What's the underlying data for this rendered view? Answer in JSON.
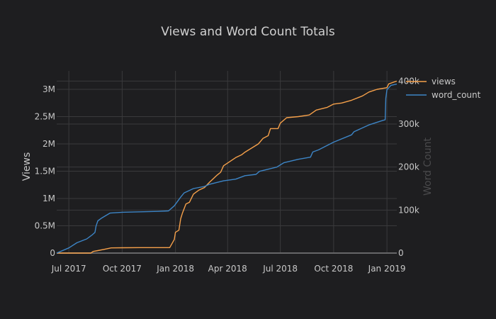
{
  "chart_data": {
    "type": "line",
    "title": "Views and Word Count Totals",
    "xlabel": "",
    "ylabel": "Views",
    "y2label": "Word Count",
    "x_ticks": [
      {
        "date": "2017-07-01",
        "label": "Jul 2017"
      },
      {
        "date": "2017-10-01",
        "label": "Oct 2017"
      },
      {
        "date": "2018-01-01",
        "label": "Jan 2018"
      },
      {
        "date": "2018-04-01",
        "label": "Apr 2018"
      },
      {
        "date": "2018-07-01",
        "label": "Jul 2018"
      },
      {
        "date": "2018-10-01",
        "label": "Oct 2018"
      },
      {
        "date": "2019-01-01",
        "label": "Jan 2019"
      }
    ],
    "xlim": [
      "2017-06-10",
      "2019-01-18"
    ],
    "y_ticks": [
      {
        "value": 0,
        "label": "0"
      },
      {
        "value": 500000,
        "label": "0.5M"
      },
      {
        "value": 1000000,
        "label": "1M"
      },
      {
        "value": 1500000,
        "label": "1.5M"
      },
      {
        "value": 2000000,
        "label": "2M"
      },
      {
        "value": 2500000,
        "label": "2.5M"
      },
      {
        "value": 3000000,
        "label": "3M"
      }
    ],
    "ylim": [
      0,
      3200000
    ],
    "y2_ticks": [
      {
        "value": 0,
        "label": "0"
      },
      {
        "value": 100000,
        "label": "100k"
      },
      {
        "value": 200000,
        "label": "200k"
      },
      {
        "value": 300000,
        "label": "300k"
      },
      {
        "value": 400000,
        "label": "400k"
      }
    ],
    "y2lim": [
      0,
      400000
    ],
    "grid": true,
    "legend_position": "top-right",
    "series": [
      {
        "name": "views",
        "axis": "y",
        "color": "#f5a04a",
        "points": [
          [
            "2017-06-10",
            0
          ],
          [
            "2017-08-08",
            0
          ],
          [
            "2017-08-12",
            30000
          ],
          [
            "2017-08-20",
            45000
          ],
          [
            "2017-09-01",
            70000
          ],
          [
            "2017-09-12",
            95000
          ],
          [
            "2017-10-01",
            97000
          ],
          [
            "2017-11-01",
            100000
          ],
          [
            "2017-12-01",
            100000
          ],
          [
            "2017-12-22",
            100000
          ],
          [
            "2017-12-30",
            250000
          ],
          [
            "2018-01-01",
            380000
          ],
          [
            "2018-01-07",
            420000
          ],
          [
            "2018-01-10",
            630000
          ],
          [
            "2018-01-13",
            730000
          ],
          [
            "2018-01-19",
            900000
          ],
          [
            "2018-01-25",
            930000
          ],
          [
            "2018-02-01",
            1080000
          ],
          [
            "2018-02-10",
            1150000
          ],
          [
            "2018-02-20",
            1200000
          ],
          [
            "2018-03-01",
            1300000
          ],
          [
            "2018-03-14",
            1430000
          ],
          [
            "2018-03-20",
            1480000
          ],
          [
            "2018-03-25",
            1600000
          ],
          [
            "2018-04-15",
            1750000
          ],
          [
            "2018-04-25",
            1800000
          ],
          [
            "2018-05-01",
            1850000
          ],
          [
            "2018-05-24",
            2000000
          ],
          [
            "2018-06-01",
            2100000
          ],
          [
            "2018-06-10",
            2150000
          ],
          [
            "2018-06-14",
            2280000
          ],
          [
            "2018-06-27",
            2280000
          ],
          [
            "2018-07-01",
            2380000
          ],
          [
            "2018-07-12",
            2480000
          ],
          [
            "2018-08-01",
            2500000
          ],
          [
            "2018-08-20",
            2530000
          ],
          [
            "2018-09-01",
            2620000
          ],
          [
            "2018-09-20",
            2670000
          ],
          [
            "2018-10-01",
            2730000
          ],
          [
            "2018-10-15",
            2750000
          ],
          [
            "2018-11-01",
            2800000
          ],
          [
            "2018-11-20",
            2880000
          ],
          [
            "2018-12-01",
            2950000
          ],
          [
            "2018-12-15",
            3000000
          ],
          [
            "2019-01-01",
            3030000
          ],
          [
            "2019-01-04",
            3100000
          ],
          [
            "2019-01-18",
            3150000
          ]
        ]
      },
      {
        "name": "word_count",
        "axis": "y2",
        "color": "#3d85c6",
        "points": [
          [
            "2017-06-10",
            0
          ],
          [
            "2017-07-01",
            12000
          ],
          [
            "2017-07-15",
            24000
          ],
          [
            "2017-08-01",
            33000
          ],
          [
            "2017-08-10",
            42000
          ],
          [
            "2017-08-15",
            48000
          ],
          [
            "2017-08-17",
            63000
          ],
          [
            "2017-08-20",
            75000
          ],
          [
            "2017-08-26",
            81000
          ],
          [
            "2017-09-10",
            93000
          ],
          [
            "2017-10-01",
            95000
          ],
          [
            "2017-11-01",
            96000
          ],
          [
            "2017-12-01",
            97000
          ],
          [
            "2017-12-20",
            98000
          ],
          [
            "2017-12-30",
            110000
          ],
          [
            "2018-01-10",
            130000
          ],
          [
            "2018-01-16",
            140000
          ],
          [
            "2018-02-01",
            150000
          ],
          [
            "2018-02-20",
            155000
          ],
          [
            "2018-03-01",
            160000
          ],
          [
            "2018-03-25",
            168000
          ],
          [
            "2018-04-15",
            172000
          ],
          [
            "2018-05-01",
            180000
          ],
          [
            "2018-05-20",
            183000
          ],
          [
            "2018-05-26",
            190000
          ],
          [
            "2018-06-10",
            195000
          ],
          [
            "2018-06-25",
            200000
          ],
          [
            "2018-07-07",
            210000
          ],
          [
            "2018-08-01",
            218000
          ],
          [
            "2018-08-22",
            223000
          ],
          [
            "2018-08-26",
            235000
          ],
          [
            "2018-09-05",
            240000
          ],
          [
            "2018-10-01",
            258000
          ],
          [
            "2018-11-01",
            275000
          ],
          [
            "2018-11-05",
            282000
          ],
          [
            "2018-12-01",
            298000
          ],
          [
            "2018-12-24",
            308000
          ],
          [
            "2018-12-29",
            310000
          ],
          [
            "2018-12-30",
            360000
          ],
          [
            "2019-01-01",
            380000
          ],
          [
            "2019-01-08",
            390000
          ],
          [
            "2019-01-18",
            393000
          ]
        ]
      }
    ]
  },
  "colors": {
    "background": "#1e1e20",
    "grid": "#3a3a3c",
    "zero_line": "#666668",
    "text": "#c8c8c8",
    "title": "#d0d0d0",
    "y2_title": "#4a4a4c"
  }
}
